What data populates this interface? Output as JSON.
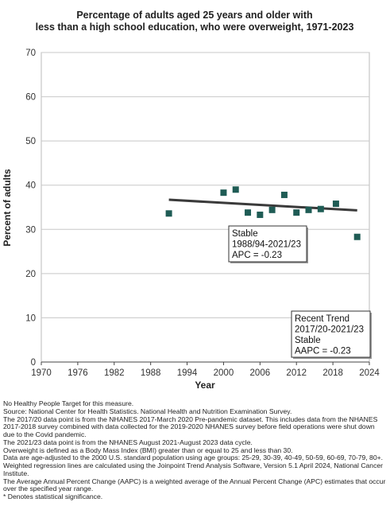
{
  "chart_data": {
    "type": "scatter",
    "title_lines": [
      "Percentage of adults aged 25 years and older with",
      "less than a high school education, who were overweight, 1971-2023"
    ],
    "xlabel": "Year",
    "ylabel": "Percent of adults",
    "xlim": [
      1970,
      2024
    ],
    "ylim": [
      0,
      70
    ],
    "x_ticks": [
      "1970",
      "1976",
      "1982",
      "1988",
      "1994",
      "2000",
      "2006",
      "2012",
      "2018",
      "2024"
    ],
    "y_ticks": [
      "0",
      "10",
      "20",
      "30",
      "40",
      "50",
      "60",
      "70"
    ],
    "grid": "horizontal",
    "points": [
      {
        "x": 1991,
        "y": 33.6
      },
      {
        "x": 2000,
        "y": 38.3
      },
      {
        "x": 2002,
        "y": 39.0
      },
      {
        "x": 2004,
        "y": 33.8
      },
      {
        "x": 2006,
        "y": 33.3
      },
      {
        "x": 2008,
        "y": 34.4
      },
      {
        "x": 2010,
        "y": 37.8
      },
      {
        "x": 2012,
        "y": 33.8
      },
      {
        "x": 2014,
        "y": 34.4
      },
      {
        "x": 2016,
        "y": 34.6
      },
      {
        "x": 2018.5,
        "y": 35.8
      },
      {
        "x": 2022,
        "y": 28.3
      }
    ],
    "trend_line": {
      "x": [
        1991,
        2022
      ],
      "y": [
        36.7,
        34.3
      ]
    },
    "marker_color": "#1f5c55",
    "line_color": "#3a3a3a",
    "annotations": [
      {
        "lines": [
          "Stable",
          "1988/94-2021/23",
          "APC = -0.23"
        ]
      },
      {
        "lines": [
          "Recent Trend",
          "2017/20-2021/23",
          "Stable",
          "AAPC = -0.23"
        ]
      }
    ]
  },
  "footnotes": [
    "No Healthy People Target for this measure.",
    "Source: National Center for Health Statistics. National Health and Nutrition Examination Survey.",
    "The 2017/20 data point is from the NHANES 2017-March 2020 Pre-pandemic dataset. This includes data from the NHANES 2017-2018 survey combined with data collected for the 2019-2020 NHANES survey before field operations were shut down due to the Covid pandemic.",
    "The 2021/23 data point is from the NHANES August 2021-August 2023 data cycle.",
    "Overweight is defined as a Body Mass Index (BMI) greater than or equal to 25 and less than 30.",
    "Data are age-adjusted to the 2000 U.S. standard population using age groups: 25-29, 30-39, 40-49, 50-59, 60-69, 70-79, 80+.",
    "Weighted regression lines are calculated using the Joinpoint Trend Analysis Software, Version 5.1 April 2024, National Cancer Institute.",
    "The Average Annual Percent Change (AAPC) is a weighted average of the Annual Percent Change (APC) estimates that occur over the specified year range.",
    "* Denotes statistical significance."
  ]
}
